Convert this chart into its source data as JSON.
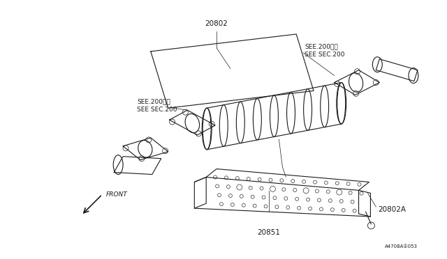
{
  "background_color": "#ffffff",
  "line_color": "#1a1a1a",
  "fig_width": 6.4,
  "fig_height": 3.72,
  "dpi": 100,
  "lw": 0.8,
  "thin_lw": 0.5,
  "label_20802": "20802",
  "label_20851": "20851",
  "label_20802A": "20802A",
  "label_front": "FRONT",
  "label_watermark": "A4708A①053",
  "label_see1_line1": "SEE.200参照",
  "label_see1_line2": "SEE SEC.200",
  "label_see2_line1": "SEE.200参照",
  "label_see2_line2": "SEE SEC.200"
}
